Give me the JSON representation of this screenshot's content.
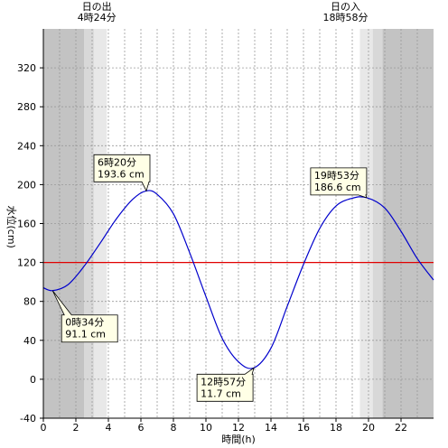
{
  "chart_data": {
    "type": "line",
    "xlabel": "時間(h)",
    "ylabel": "水位(cm)",
    "xlim": [
      0,
      24
    ],
    "ylim": [
      -40,
      360
    ],
    "x_ticks": [
      0,
      2,
      4,
      6,
      8,
      10,
      12,
      14,
      16,
      18,
      20,
      22
    ],
    "y_ticks": [
      -40,
      0,
      40,
      80,
      120,
      160,
      200,
      240,
      280,
      320
    ],
    "reference_line": {
      "y": 120,
      "color": "#e00000"
    },
    "sun": {
      "sunrise_label": "日の出",
      "sunrise_time": "4時24分",
      "sunrise_hour": 4.4,
      "sunset_label": "日の入",
      "sunset_time": "18時58分",
      "sunset_hour": 18.97
    },
    "series": [
      {
        "color": "#0000cc",
        "x": [
          0,
          0.567,
          1.5,
          2.5,
          3.5,
          4.5,
          5.5,
          6.333,
          7,
          8,
          9,
          10,
          11,
          12,
          12.95,
          14,
          15,
          16,
          17,
          18,
          19,
          19.883,
          21,
          22,
          23,
          24
        ],
        "y": [
          94,
          91.1,
          97,
          116,
          140,
          165,
          185,
          193.6,
          190,
          170,
          130,
          85,
          42,
          18,
          11.7,
          32,
          75,
          118,
          155,
          178,
          186,
          186.6,
          176,
          152,
          124,
          102
        ]
      }
    ],
    "annotations": [
      {
        "x": 0.567,
        "y": 91.1,
        "time": "0時34分",
        "value": "91.1 cm"
      },
      {
        "x": 6.333,
        "y": 193.6,
        "time": "6時20分",
        "value": "193.6 cm"
      },
      {
        "x": 12.95,
        "y": 11.7,
        "time": "12時57分",
        "value": "11.7 cm"
      },
      {
        "x": 19.883,
        "y": 186.6,
        "time": "19時53分",
        "value": "186.6 cm"
      }
    ],
    "colors": {
      "night": "#c3c3c3",
      "twilight_outer": "#d8d8d8",
      "twilight_inner": "#e8e8e8",
      "day": "#ffffff",
      "grid": "#9a9a9a",
      "callout_bg": "#ffffe6"
    }
  }
}
